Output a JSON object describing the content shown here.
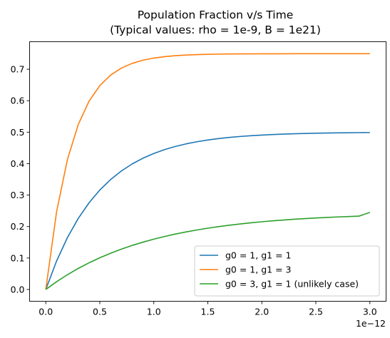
{
  "chart_data": {
    "type": "line",
    "title_line1": "Population Fraction v/s Time",
    "title_line2": "(Typical values: rho = 1e-9, B = 1e21)",
    "xlabel": "",
    "ylabel": "",
    "x_offset_text": "1e−12",
    "xlim": [
      -0.15,
      3.15
    ],
    "ylim": [
      -0.0375,
      0.7875
    ],
    "x_ticks": [
      0.0,
      0.5,
      1.0,
      1.5,
      2.0,
      2.5,
      3.0
    ],
    "x_tick_labels": [
      "0.0",
      "0.5",
      "1.0",
      "1.5",
      "2.0",
      "2.5",
      "3.0"
    ],
    "y_ticks": [
      0.0,
      0.1,
      0.2,
      0.3,
      0.4,
      0.5,
      0.6,
      0.7
    ],
    "y_tick_labels": [
      "0.0",
      "0.1",
      "0.2",
      "0.3",
      "0.4",
      "0.5",
      "0.6",
      "0.7"
    ],
    "grid": false,
    "legend_position": "lower-right",
    "x": [
      0.0,
      0.1,
      0.2,
      0.3,
      0.4,
      0.5,
      0.6,
      0.7,
      0.8,
      0.9,
      1.0,
      1.1,
      1.2,
      1.3,
      1.4,
      1.5,
      1.6,
      1.7,
      1.8,
      1.9,
      2.0,
      2.1,
      2.2,
      2.3,
      2.4,
      2.5,
      2.6,
      2.7,
      2.8,
      2.9,
      3.0
    ],
    "series": [
      {
        "name": "g0 = 1, g1 = 1",
        "color": "#1f77b4",
        "values": [
          0.0,
          0.0906,
          0.1648,
          0.2256,
          0.2753,
          0.3161,
          0.3494,
          0.3767,
          0.3991,
          0.4174,
          0.4323,
          0.4446,
          0.4546,
          0.4629,
          0.4696,
          0.4751,
          0.4796,
          0.4833,
          0.4863,
          0.4888,
          0.4908,
          0.4925,
          0.4939,
          0.495,
          0.4959,
          0.4966,
          0.4972,
          0.4977,
          0.4982,
          0.4985,
          0.4988
        ]
      },
      {
        "name": "g0 = 1, g1 = 3",
        "color": "#ff7f0e",
        "values": [
          0.0,
          0.2472,
          0.4128,
          0.5238,
          0.5982,
          0.648,
          0.6814,
          0.7038,
          0.7188,
          0.7289,
          0.7356,
          0.7401,
          0.7431,
          0.7452,
          0.7465,
          0.7474,
          0.7481,
          0.7485,
          0.7488,
          0.7489,
          0.7491,
          0.7492,
          0.7492,
          0.7493,
          0.7493,
          0.7493,
          0.7493,
          0.7493,
          0.7493,
          0.7493,
          0.7493
        ]
      },
      {
        "name": "g0 = 3, g1 = 1 (unlikely case)",
        "color": "#2ca02c",
        "values": [
          0.0,
          0.0247,
          0.0469,
          0.0668,
          0.0847,
          0.1008,
          0.1153,
          0.1283,
          0.14,
          0.1505,
          0.16,
          0.1685,
          0.1762,
          0.183,
          0.1892,
          0.1948,
          0.1998,
          0.2043,
          0.2083,
          0.212,
          0.2152,
          0.2182,
          0.2208,
          0.2232,
          0.2253,
          0.2273,
          0.229,
          0.2305,
          0.2319,
          0.2332,
          0.245
        ]
      }
    ]
  }
}
